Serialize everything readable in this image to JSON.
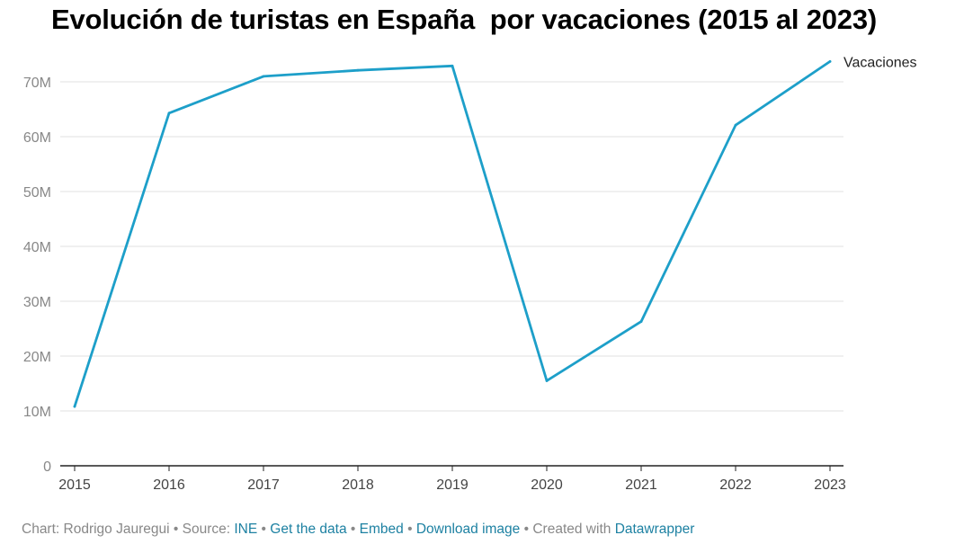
{
  "chart_data": {
    "type": "line",
    "title": "Evolución de turistas en España  por vacaciones (2015 al 2023)",
    "x": [
      "2015",
      "2016",
      "2017",
      "2018",
      "2019",
      "2020",
      "2021",
      "2022",
      "2023"
    ],
    "series": [
      {
        "name": "Vacaciones",
        "color": "#1d9fc9",
        "values": [
          10.8,
          64.3,
          71.0,
          72.1,
          72.9,
          15.5,
          26.3,
          62.1,
          73.7
        ]
      }
    ],
    "unit": "M",
    "ylim": [
      0,
      75
    ],
    "yticks": [
      {
        "value": 0,
        "label": "0"
      },
      {
        "value": 10,
        "label": "10M"
      },
      {
        "value": 20,
        "label": "20M"
      },
      {
        "value": 30,
        "label": "30M"
      },
      {
        "value": 40,
        "label": "40M"
      },
      {
        "value": 50,
        "label": "50M"
      },
      {
        "value": 60,
        "label": "60M"
      },
      {
        "value": 70,
        "label": "70M"
      }
    ],
    "grid": true,
    "legend": "direct label at line end"
  },
  "footer": {
    "chart_prefix": "Chart: Rodrigo Jauregui",
    "source_prefix": "Source:",
    "source_link": "INE",
    "get_data": "Get the data",
    "embed": "Embed",
    "download": "Download image",
    "created_with": "Created with",
    "datawrapper": "Datawrapper",
    "separator": "•"
  }
}
